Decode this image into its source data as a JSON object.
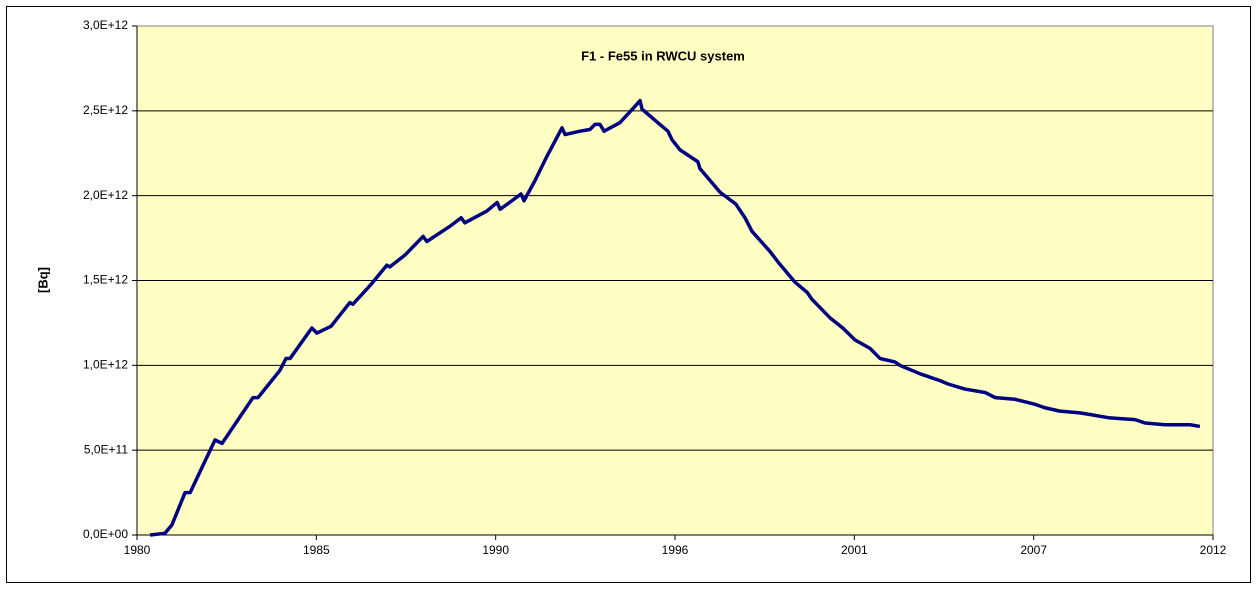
{
  "chart_data": {
    "type": "line",
    "title": "F1 - Fe55 in RWCU system",
    "y_label": "[Bq]",
    "xlim": [
      1980,
      2012
    ],
    "xticks": [
      1980,
      {
        "value": 1985.333,
        "label": "1985"
      },
      {
        "value": 1990.667,
        "label": "1990"
      },
      1996,
      {
        "value": 2001.333,
        "label": "2001"
      },
      {
        "value": 2006.667,
        "label": "2007"
      },
      2012
    ],
    "ylim": [
      0,
      3000000000000.0
    ],
    "yticks": [
      {
        "value": 0,
        "label": "0,0E+00"
      },
      {
        "value": 500000000000.0,
        "label": "5,0E+11"
      },
      {
        "value": 1000000000000.0,
        "label": "1,0E+12"
      },
      {
        "value": 1500000000000.0,
        "label": "1,5E+12"
      },
      {
        "value": 2000000000000.0,
        "label": "2,0E+12"
      },
      {
        "value": 2500000000000.0,
        "label": "2,5E+12"
      },
      {
        "value": 3000000000000.0,
        "label": "3,0E+12"
      }
    ],
    "grid": true,
    "x": [
      1980.39,
      1980.83,
      1981.04,
      1981.43,
      1981.58,
      1982.32,
      1982.53,
      1983.45,
      1983.6,
      1984.25,
      1984.43,
      1984.55,
      1985.2,
      1985.35,
      1985.77,
      1986.33,
      1986.42,
      1986.93,
      1987.43,
      1987.52,
      1987.97,
      1988.51,
      1988.62,
      1989.31,
      1989.64,
      1989.75,
      1990.41,
      1990.71,
      1990.8,
      1991.15,
      1991.42,
      1991.51,
      1991.84,
      1992.16,
      1992.64,
      1992.73,
      1993.17,
      1993.47,
      1993.62,
      1993.77,
      1993.89,
      1994.36,
      1994.78,
      1994.96,
      1995.02,
      1995.55,
      1995.79,
      1995.91,
      1996.15,
      1996.68,
      1996.74,
      1997.34,
      1997.81,
      1998.08,
      1998.29,
      1998.83,
      1999.06,
      1999.57,
      1999.93,
      2000.07,
      2000.61,
      2000.99,
      2001.35,
      2001.8,
      2002.1,
      2002.54,
      2002.69,
      2003.29,
      2003.88,
      2004.12,
      2004.62,
      2005.22,
      2005.52,
      2006.11,
      2006.71,
      2007.0,
      2007.45,
      2008.04,
      2008.34,
      2008.93,
      2009.68,
      2009.98,
      2010.57,
      2011.32,
      2011.61
    ],
    "series": [
      {
        "name": "Fe55",
        "color": "#000080",
        "values": [
          0,
          10000000000.0,
          60000000000.0,
          250000000000.0,
          250000000000.0,
          560000000000.0,
          540000000000.0,
          810000000000.0,
          810000000000.0,
          970000000000.0,
          1040000000000.0,
          1040000000000.0,
          1220000000000.0,
          1190000000000.0,
          1230000000000.0,
          1370000000000.0,
          1360000000000.0,
          1470000000000.0,
          1590000000000.0,
          1580000000000.0,
          1650000000000.0,
          1760000000000.0,
          1730000000000.0,
          1820000000000.0,
          1870000000000.0,
          1840000000000.0,
          1910000000000.0,
          1960000000000.0,
          1920000000000.0,
          1970000000000.0,
          2010000000000.0,
          1970000000000.0,
          2090000000000.0,
          2220000000000.0,
          2400000000000.0,
          2360000000000.0,
          2380000000000.0,
          2390000000000.0,
          2420000000000.0,
          2420000000000.0,
          2380000000000.0,
          2430000000000.0,
          2520000000000.0,
          2560000000000.0,
          2510000000000.0,
          2420000000000.0,
          2380000000000.0,
          2330000000000.0,
          2270000000000.0,
          2200000000000.0,
          2160000000000.0,
          2020000000000.0,
          1950000000000.0,
          1870000000000.0,
          1790000000000.0,
          1670000000000.0,
          1610000000000.0,
          1490000000000.0,
          1430000000000.0,
          1390000000000.0,
          1280000000000.0,
          1220000000000.0,
          1150000000000.0,
          1100000000000.0,
          1040000000000.0,
          1020000000000.0,
          1000000000000.0,
          950000000000.0,
          910000000000.0,
          890000000000.0,
          860000000000.0,
          840000000000.0,
          810000000000.0,
          800000000000.0,
          770000000000.0,
          750000000000.0,
          730000000000.0,
          720000000000.0,
          710000000000.0,
          690000000000.0,
          680000000000.0,
          660000000000.0,
          650000000000.0,
          650000000000.0,
          640000000000.0
        ]
      }
    ]
  }
}
